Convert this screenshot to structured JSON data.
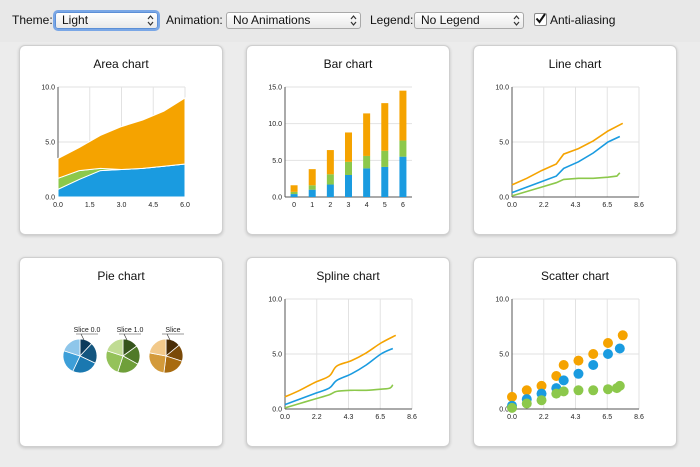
{
  "toolbar": {
    "theme_label": "Theme:",
    "theme_value": "Light",
    "animation_label": "Animation:",
    "animation_value": "No Animations",
    "legend_label": "Legend:",
    "legend_value": "No Legend",
    "antialias_label": "Anti-aliasing",
    "antialias_checked": true
  },
  "colors": {
    "orange": "#f5a300",
    "blue": "#1a9be0",
    "green": "#8cc84b",
    "grid": "#e2e2e2",
    "axis": "#555555"
  },
  "icons": [
    "chevron-updown-icon",
    "checkmark-icon"
  ],
  "charts": [
    {
      "title": "Area chart",
      "chart_data": {
        "type": "area",
        "xlim": [
          0,
          6
        ],
        "ylim": [
          0,
          10
        ],
        "x_ticks": [
          "0.0",
          "1.5",
          "3.0",
          "4.5",
          "6.0"
        ],
        "y_ticks": [
          "0.0",
          "5.0",
          "10.0"
        ],
        "x": [
          0,
          1,
          2,
          3,
          4,
          5,
          6
        ],
        "series": [
          {
            "values": [
              0.7,
              1.6,
              2.4,
              2.5,
              2.6,
              2.8,
              3.0
            ]
          },
          {
            "values": [
              1.0,
              0.8,
              0.2,
              0.0,
              0.0,
              0.0,
              0.0
            ]
          },
          {
            "values": [
              1.8,
              2.1,
              3.0,
              3.9,
              4.4,
              5.0,
              6.0
            ]
          }
        ]
      }
    },
    {
      "title": "Bar chart",
      "chart_data": {
        "type": "bar",
        "ylim": [
          0,
          15
        ],
        "categories": [
          "0",
          "1",
          "2",
          "3",
          "4",
          "5",
          "6"
        ],
        "y_ticks": [
          "0.0",
          "5.0",
          "10.0",
          "15.0"
        ],
        "series": [
          {
            "values": [
              0.4,
              1.0,
              1.7,
              3.0,
              3.9,
              4.1,
              5.5
            ]
          },
          {
            "values": [
              0.3,
              0.6,
              1.4,
              1.8,
              1.7,
              2.2,
              2.2
            ]
          },
          {
            "values": [
              0.9,
              2.2,
              3.3,
              4.0,
              5.8,
              6.5,
              6.8
            ]
          }
        ]
      }
    },
    {
      "title": "Line chart",
      "chart_data": {
        "type": "line",
        "xlim": [
          0,
          8.6
        ],
        "ylim": [
          0,
          10
        ],
        "x_ticks": [
          "0.0",
          "2.2",
          "4.3",
          "6.5",
          "8.6"
        ],
        "y_ticks": [
          "0.0",
          "5.0",
          "10.0"
        ],
        "series": [
          {
            "points": [
              [
                0,
                1.1
              ],
              [
                1,
                1.7
              ],
              [
                2,
                2.4
              ],
              [
                3,
                3.0
              ],
              [
                3.5,
                3.9
              ],
              [
                4.5,
                4.4
              ],
              [
                5.5,
                5.1
              ],
              [
                6.5,
                6.0
              ],
              [
                7.5,
                6.7
              ]
            ]
          },
          {
            "points": [
              [
                0,
                0.4
              ],
              [
                1,
                0.9
              ],
              [
                2,
                1.4
              ],
              [
                3,
                1.9
              ],
              [
                3.5,
                2.6
              ],
              [
                4.5,
                3.2
              ],
              [
                5.5,
                4.0
              ],
              [
                6.5,
                5.0
              ],
              [
                7.3,
                5.5
              ]
            ]
          },
          {
            "points": [
              [
                0,
                0.1
              ],
              [
                1,
                0.5
              ],
              [
                2,
                0.9
              ],
              [
                3,
                1.3
              ],
              [
                3.5,
                1.6
              ],
              [
                4.5,
                1.7
              ],
              [
                5.5,
                1.7
              ],
              [
                6.5,
                1.8
              ],
              [
                7.1,
                1.9
              ],
              [
                7.3,
                2.2
              ]
            ]
          }
        ]
      }
    },
    {
      "title": "Pie chart",
      "chart_data": {
        "type": "pie",
        "pies": [
          {
            "label": "Slice 0.0",
            "palette": "blue",
            "values": [
              12,
              20,
              25,
              23,
              20
            ]
          },
          {
            "label": "Slice 1.0",
            "palette": "green",
            "values": [
              15,
              18,
              22,
              25,
              20
            ]
          },
          {
            "label": "Slice",
            "palette": "brown",
            "values": [
              14,
              16,
              22,
              26,
              22
            ]
          }
        ]
      }
    },
    {
      "title": "Spline chart",
      "chart_data": {
        "type": "spline",
        "xlim": [
          0,
          8.6
        ],
        "ylim": [
          0,
          10
        ],
        "x_ticks": [
          "0.0",
          "2.2",
          "4.3",
          "6.5",
          "8.6"
        ],
        "y_ticks": [
          "0.0",
          "5.0",
          "10.0"
        ],
        "series": [
          {
            "points": [
              [
                0,
                1.1
              ],
              [
                1,
                1.7
              ],
              [
                2,
                2.4
              ],
              [
                3,
                3.0
              ],
              [
                3.5,
                3.9
              ],
              [
                4.5,
                4.4
              ],
              [
                5.5,
                5.1
              ],
              [
                6.5,
                6.0
              ],
              [
                7.5,
                6.7
              ]
            ]
          },
          {
            "points": [
              [
                0,
                0.4
              ],
              [
                1,
                0.9
              ],
              [
                2,
                1.4
              ],
              [
                3,
                1.9
              ],
              [
                3.5,
                2.6
              ],
              [
                4.5,
                3.2
              ],
              [
                5.5,
                4.0
              ],
              [
                6.5,
                5.0
              ],
              [
                7.3,
                5.5
              ]
            ]
          },
          {
            "points": [
              [
                0,
                0.1
              ],
              [
                1,
                0.5
              ],
              [
                2,
                0.9
              ],
              [
                3,
                1.3
              ],
              [
                3.5,
                1.6
              ],
              [
                4.5,
                1.7
              ],
              [
                5.5,
                1.7
              ],
              [
                6.5,
                1.8
              ],
              [
                7.1,
                1.9
              ],
              [
                7.3,
                2.2
              ]
            ]
          }
        ]
      }
    },
    {
      "title": "Scatter chart",
      "chart_data": {
        "type": "scatter",
        "xlim": [
          0,
          8.6
        ],
        "ylim": [
          0,
          10
        ],
        "x_ticks": [
          "0.0",
          "2.2",
          "4.3",
          "6.5",
          "8.6"
        ],
        "y_ticks": [
          "0.0",
          "5.0",
          "10.0"
        ],
        "series": [
          {
            "points": [
              [
                0,
                1.1
              ],
              [
                1,
                1.7
              ],
              [
                2,
                2.1
              ],
              [
                3,
                3.0
              ],
              [
                3.5,
                4.0
              ],
              [
                4.5,
                4.4
              ],
              [
                5.5,
                5.0
              ],
              [
                6.5,
                6.0
              ],
              [
                7.5,
                6.7
              ]
            ]
          },
          {
            "points": [
              [
                0,
                0.3
              ],
              [
                1,
                0.9
              ],
              [
                2,
                1.4
              ],
              [
                3,
                1.9
              ],
              [
                3.5,
                2.6
              ],
              [
                4.5,
                3.2
              ],
              [
                5.5,
                4.0
              ],
              [
                6.5,
                5.0
              ],
              [
                7.3,
                5.5
              ]
            ]
          },
          {
            "points": [
              [
                0,
                0.1
              ],
              [
                1,
                0.5
              ],
              [
                2,
                0.8
              ],
              [
                3,
                1.4
              ],
              [
                3.5,
                1.6
              ],
              [
                4.5,
                1.7
              ],
              [
                5.5,
                1.7
              ],
              [
                6.5,
                1.8
              ],
              [
                7.1,
                1.9
              ],
              [
                7.3,
                2.1
              ]
            ]
          }
        ]
      }
    }
  ]
}
